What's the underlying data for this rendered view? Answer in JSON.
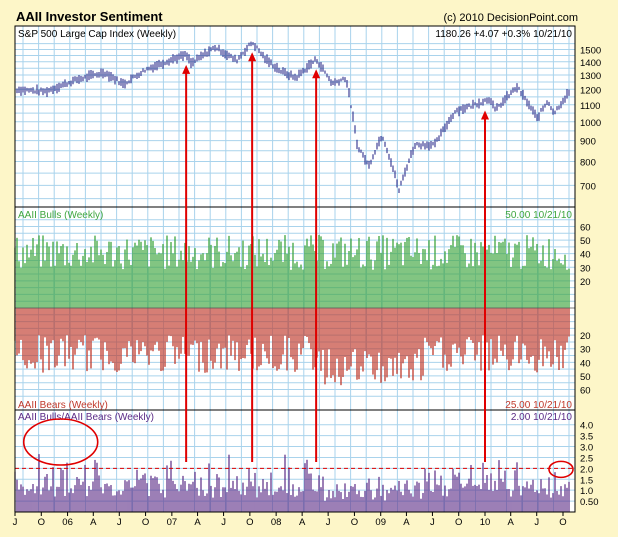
{
  "header": {
    "title": "AAII Investor Sentiment",
    "copyright": "(c) 2010 DecisionPoint.com"
  },
  "colors": {
    "background": "#FDF6C8",
    "plot_bg": "#FFFFFF",
    "grid": "#A9D3EC",
    "price": "#1A1A80",
    "bulls": "#3FA63F",
    "bears": "#C0392B",
    "ratio": "#5B2A86",
    "arrow": "#E00000",
    "dashed": "#E00000"
  },
  "chart_data": [
    {
      "type": "line",
      "title": "S&P 500 Large Cap Index (Weekly)",
      "readout": "1180.26  +4.07  +0.3%  10/21/10",
      "ylim": [
        620,
        1600
      ],
      "y_scale": "log",
      "y_ticks": [
        700,
        800,
        900,
        1000,
        1100,
        1200,
        1300,
        1400,
        1500
      ],
      "x_range": [
        "2005-07-01",
        "2010-10-22"
      ],
      "points": [
        [
          "2005-07-01",
          1200
        ],
        [
          "2005-10-15",
          1185
        ],
        [
          "2006-02-01",
          1265
        ],
        [
          "2006-05-10",
          1320
        ],
        [
          "2006-07-15",
          1235
        ],
        [
          "2006-10-01",
          1340
        ],
        [
          "2007-01-01",
          1420
        ],
        [
          "2007-02-20",
          1455
        ],
        [
          "2007-03-10",
          1385
        ],
        [
          "2007-06-01",
          1520
        ],
        [
          "2007-08-15",
          1410
        ],
        [
          "2007-10-09",
          1562
        ],
        [
          "2007-11-25",
          1420
        ],
        [
          "2008-01-20",
          1325
        ],
        [
          "2008-03-10",
          1280
        ],
        [
          "2008-05-20",
          1420
        ],
        [
          "2008-07-15",
          1240
        ],
        [
          "2008-09-01",
          1280
        ],
        [
          "2008-10-10",
          880
        ],
        [
          "2008-11-20",
          780
        ],
        [
          "2009-01-06",
          930
        ],
        [
          "2009-03-06",
          680
        ],
        [
          "2009-05-01",
          880
        ],
        [
          "2009-07-10",
          880
        ],
        [
          "2009-09-20",
          1065
        ],
        [
          "2009-11-15",
          1095
        ],
        [
          "2010-01-20",
          1140
        ],
        [
          "2010-02-05",
          1065
        ],
        [
          "2010-04-23",
          1215
        ],
        [
          "2010-07-02",
          1020
        ],
        [
          "2010-08-09",
          1125
        ],
        [
          "2010-08-31",
          1050
        ],
        [
          "2010-10-22",
          1180
        ]
      ]
    },
    {
      "type": "bar",
      "title": "AAII Bulls (Weekly)",
      "readout": "50.00  10/21/10",
      "direction": "up",
      "ylim": [
        0,
        67
      ],
      "y_ticks": [
        20,
        30,
        40,
        50,
        60
      ]
    },
    {
      "type": "bar",
      "title": "AAII Bears (Weekly)",
      "readout": "25.00  10/21/10",
      "direction": "down",
      "ylim": [
        0,
        67
      ],
      "y_ticks": [
        20,
        30,
        40,
        50,
        60
      ]
    },
    {
      "type": "bar",
      "title": "AAII Bulls/AAII Bears (Weekly)",
      "readout": "2.00  10/21/10",
      "ylim": [
        0,
        4.4
      ],
      "y_ticks": [
        "4.0",
        "3.5",
        "3.0",
        "2.5",
        "2.0",
        "1.5",
        "1.0",
        "0.50"
      ],
      "threshold": 2.0
    }
  ],
  "x_axis": {
    "labels": [
      [
        "J",
        "2005-07-01"
      ],
      [
        "O",
        "2005-10-01"
      ],
      [
        "06",
        "2006-01-01"
      ],
      [
        "A",
        "2006-04-01"
      ],
      [
        "J",
        "2006-07-01"
      ],
      [
        "O",
        "2006-10-01"
      ],
      [
        "07",
        "2007-01-01"
      ],
      [
        "A",
        "2007-04-01"
      ],
      [
        "J",
        "2007-07-01"
      ],
      [
        "O",
        "2007-10-01"
      ],
      [
        "08",
        "2008-01-01"
      ],
      [
        "A",
        "2008-04-01"
      ],
      [
        "J",
        "2008-07-01"
      ],
      [
        "O",
        "2008-10-01"
      ],
      [
        "09",
        "2009-01-01"
      ],
      [
        "A",
        "2009-04-01"
      ],
      [
        "J",
        "2009-07-01"
      ],
      [
        "O",
        "2009-10-01"
      ],
      [
        "10",
        "2010-01-01"
      ],
      [
        "A",
        "2010-04-01"
      ],
      [
        "J",
        "2010-07-01"
      ],
      [
        "O",
        "2010-10-01"
      ]
    ]
  },
  "annotations": {
    "arrows": [
      "2007-02-20",
      "2007-10-09",
      "2008-05-20",
      "2010-01-01"
    ],
    "circles": [
      {
        "date": "2005-12-01",
        "panel": "ratio"
      },
      {
        "date": "2010-10-22",
        "panel": "ratio"
      }
    ]
  }
}
